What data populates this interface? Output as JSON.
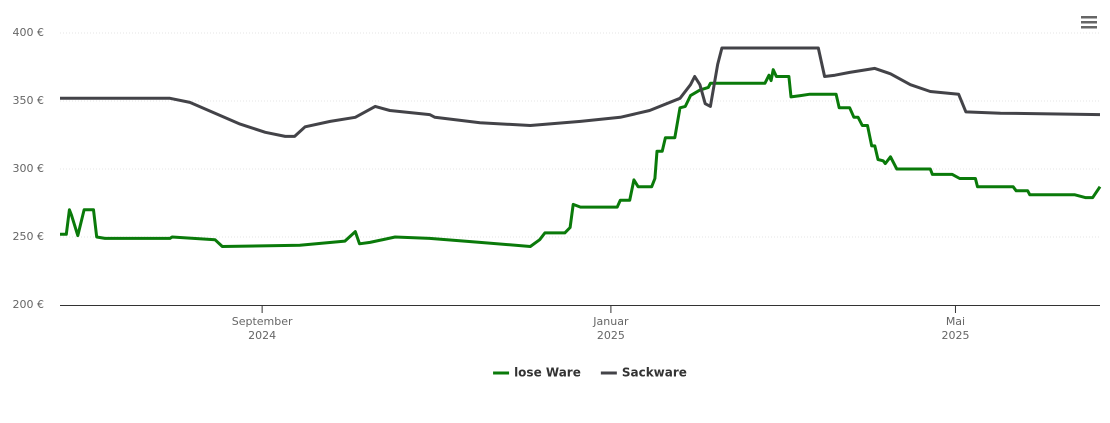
{
  "chart_data": {
    "type": "line",
    "xlim": [
      2024.474,
      2025.467
    ],
    "xticks": [
      {
        "value": 2024.667,
        "label": [
          "September",
          "2024"
        ]
      },
      {
        "value": 2025.0,
        "label": [
          "Januar",
          "2025"
        ]
      },
      {
        "value": 2025.329,
        "label": [
          "Mai",
          "2025"
        ]
      }
    ],
    "ylim": [
      200,
      400
    ],
    "yticks": [
      {
        "value": 200,
        "label": "200 €"
      },
      {
        "value": 250,
        "label": "250 €"
      },
      {
        "value": 300,
        "label": "300 €"
      },
      {
        "value": 350,
        "label": "350 €"
      },
      {
        "value": 400,
        "label": "400 €"
      }
    ],
    "grid": true,
    "legend": "bottom",
    "series": [
      {
        "name": "lose Ware",
        "color": "#0a7a0a",
        "x": [
          2024.474,
          2024.48,
          2024.483,
          2024.485,
          2024.491,
          2024.497,
          2024.506,
          2024.509,
          2024.517,
          2024.579,
          2024.581,
          2024.622,
          2024.629,
          2024.703,
          2024.746,
          2024.756,
          2024.76,
          2024.77,
          2024.794,
          2024.827,
          2024.875,
          2024.923,
          2024.932,
          2024.937,
          2024.956,
          2024.961,
          2024.964,
          2024.971,
          2025.006,
          2025.009,
          2025.018,
          2025.022,
          2025.026,
          2025.039,
          2025.042,
          2025.044,
          2025.049,
          2025.052,
          2025.061,
          2025.066,
          2025.071,
          2025.076,
          2025.085,
          2025.093,
          2025.095,
          2025.147,
          2025.151,
          2025.153,
          2025.155,
          2025.158,
          2025.17,
          2025.172,
          2025.181,
          2025.19,
          2025.215,
          2025.218,
          2025.228,
          2025.232,
          2025.236,
          2025.24,
          2025.245,
          2025.249,
          2025.252,
          2025.255,
          2025.26,
          2025.262,
          2025.267,
          2025.273,
          2025.305,
          2025.307,
          2025.326,
          2025.333,
          2025.348,
          2025.35,
          2025.384,
          2025.387,
          2025.398,
          2025.4,
          2025.443,
          2025.453,
          2025.46,
          2025.467
        ],
        "values": [
          252,
          252,
          270,
          266,
          251,
          270,
          270,
          250,
          249,
          249,
          250,
          248,
          243,
          244,
          247,
          254,
          245,
          246,
          250,
          249,
          246,
          243,
          248,
          253,
          253,
          257,
          274,
          272,
          272,
          277,
          277,
          292,
          287,
          287,
          293,
          313,
          313,
          323,
          323,
          345,
          346,
          354,
          358,
          360,
          363,
          363,
          369,
          365,
          373,
          368,
          368,
          353,
          354,
          355,
          355,
          345,
          345,
          338,
          338,
          332,
          332,
          317,
          317,
          307,
          306,
          304,
          309,
          300,
          300,
          296,
          296,
          293,
          293,
          287,
          287,
          284,
          284,
          281,
          281,
          279,
          279,
          287
        ]
      },
      {
        "name": "Sackware",
        "color": "#434348",
        "x": [
          2024.474,
          2024.579,
          2024.598,
          2024.622,
          2024.646,
          2024.67,
          2024.689,
          2024.698,
          2024.708,
          2024.732,
          2024.756,
          2024.775,
          2024.789,
          2024.827,
          2024.832,
          2024.875,
          2024.923,
          2024.971,
          2025.009,
          2025.037,
          2025.066,
          2025.076,
          2025.08,
          2025.085,
          2025.09,
          2025.095,
          2025.102,
          2025.106,
          2025.198,
          2025.204,
          2025.214,
          2025.228,
          2025.252,
          2025.267,
          2025.286,
          2025.305,
          2025.332,
          2025.339,
          2025.372,
          2025.467
        ],
        "values": [
          352,
          352,
          349,
          341,
          333,
          327,
          324,
          324,
          331,
          335,
          338,
          346,
          343,
          340,
          338,
          334,
          332,
          335,
          338,
          343,
          352,
          362,
          368,
          362,
          348,
          346,
          377,
          389,
          389,
          368,
          369,
          371,
          374,
          370,
          362,
          357,
          355,
          342,
          341,
          340
        ]
      }
    ]
  }
}
